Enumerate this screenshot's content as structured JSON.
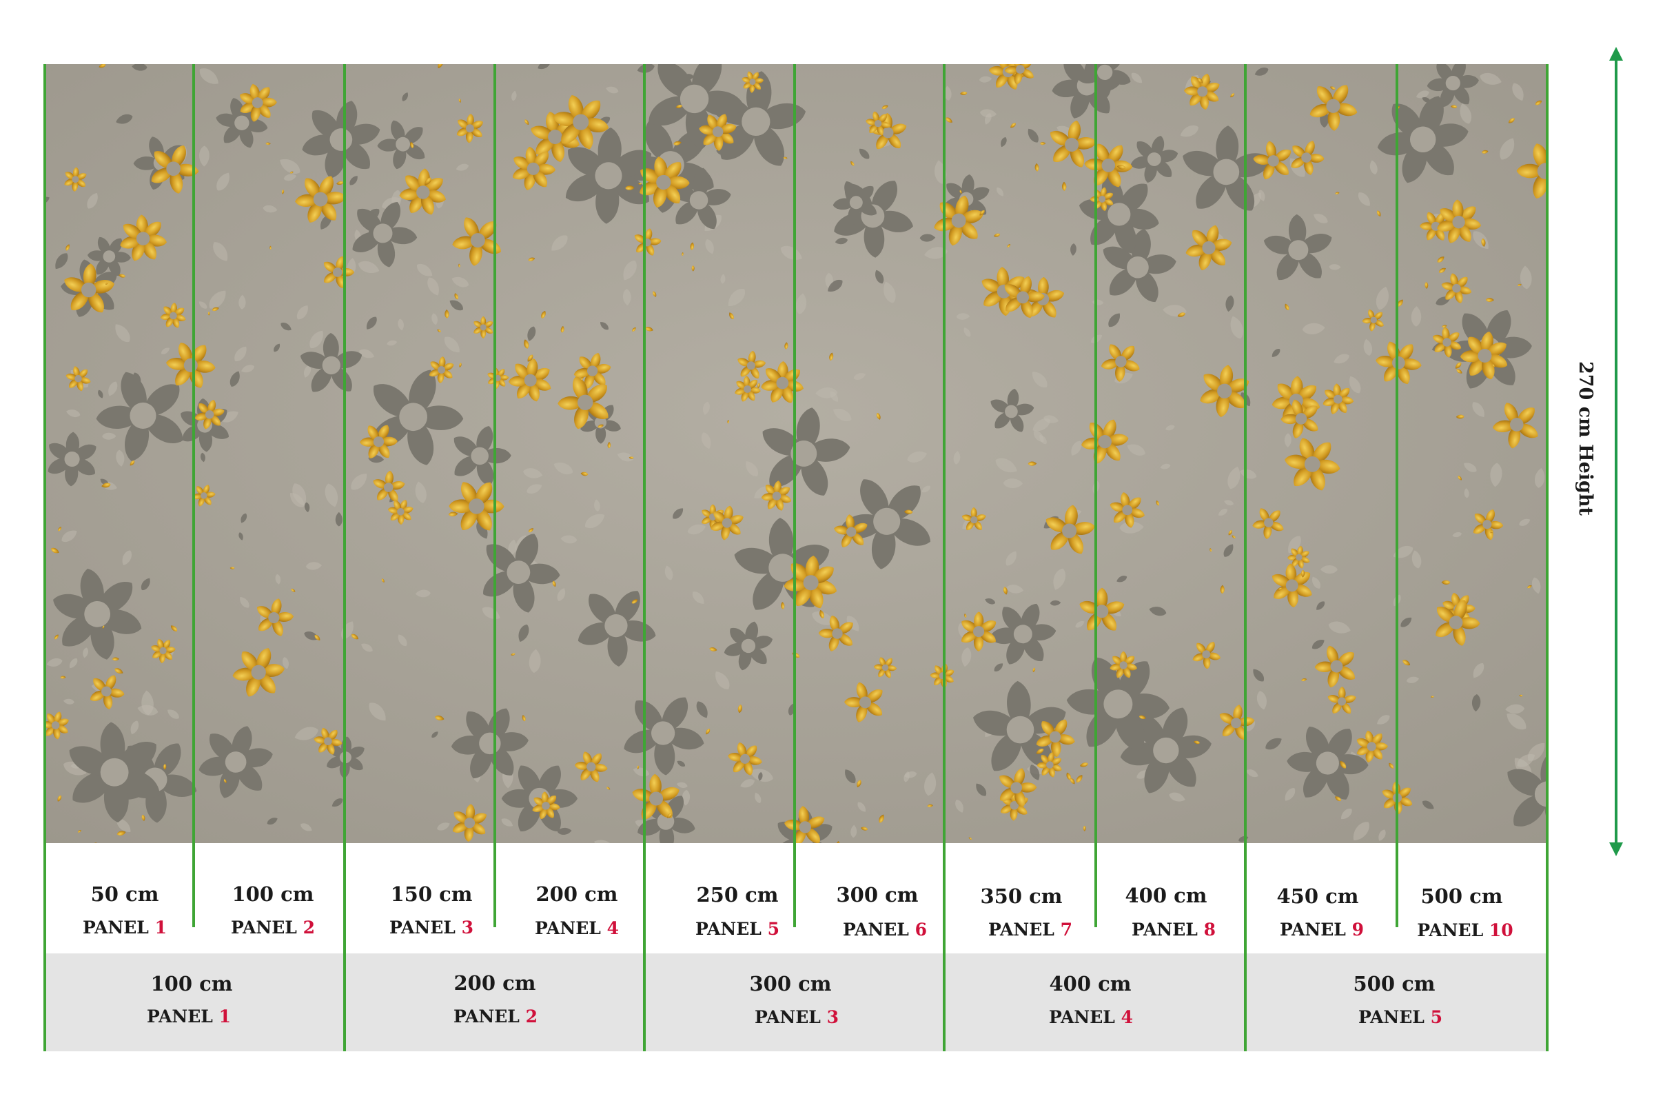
{
  "height_label": "270 cm Height",
  "colors": {
    "guide_line": "#3fa535",
    "arrow": "#1f9a4a",
    "wallpaper_base": "#a8a398",
    "gold": "#d3a128",
    "dark_petal": "#6c6a62",
    "panel_number": "#d0103a",
    "row_band": "#e4e4e4"
  },
  "narrow_panels": [
    {
      "size": "50 cm",
      "label": "PANEL",
      "number": "1"
    },
    {
      "size": "100 cm",
      "label": "PANEL",
      "number": "2"
    },
    {
      "size": "150 cm",
      "label": "PANEL",
      "number": "3"
    },
    {
      "size": "200 cm",
      "label": "PANEL",
      "number": "4"
    },
    {
      "size": "250 cm",
      "label": "PANEL",
      "number": "5"
    },
    {
      "size": "300 cm",
      "label": "PANEL",
      "number": "6"
    },
    {
      "size": "350 cm",
      "label": "PANEL",
      "number": "7"
    },
    {
      "size": "400 cm",
      "label": "PANEL",
      "number": "8"
    },
    {
      "size": "450 cm",
      "label": "PANEL",
      "number": "9"
    },
    {
      "size": "500 cm",
      "label": "PANEL",
      "number": "10"
    }
  ],
  "wide_panels": [
    {
      "size": "100 cm",
      "label": "PANEL",
      "number": "1"
    },
    {
      "size": "200 cm",
      "label": "PANEL",
      "number": "2"
    },
    {
      "size": "300 cm",
      "label": "PANEL",
      "number": "3"
    },
    {
      "size": "400 cm",
      "label": "PANEL",
      "number": "4"
    },
    {
      "size": "500 cm",
      "label": "PANEL",
      "number": "5"
    }
  ]
}
